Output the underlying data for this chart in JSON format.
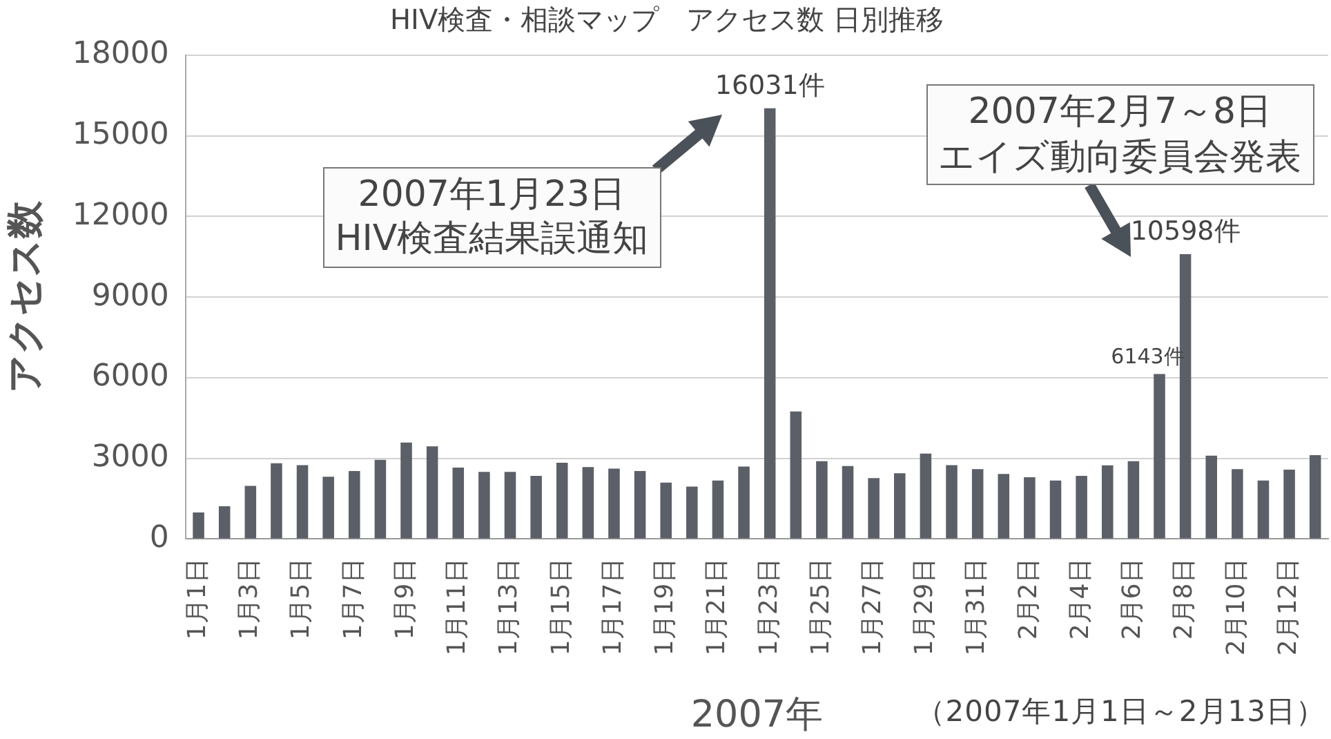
{
  "chart_data": {
    "type": "bar",
    "title": "HIV検査・相談マップ　アクセス数 日別推移",
    "ylabel": "アクセス数",
    "xlabel": "2007年",
    "categories": [
      "1月1日",
      null,
      "1月3日",
      null,
      "1月5日",
      null,
      "1月7日",
      null,
      "1月9日",
      null,
      "1月11日",
      null,
      "1月13日",
      null,
      "1月15日",
      null,
      "1月17日",
      null,
      "1月19日",
      null,
      "1月21日",
      null,
      "1月23日",
      null,
      "1月25日",
      null,
      "1月27日",
      null,
      "1月29日",
      null,
      "1月31日",
      null,
      "2月2日",
      null,
      "2月4日",
      null,
      "2月6日",
      null,
      "2月8日",
      null,
      "2月10日",
      null,
      "2月12日",
      null
    ],
    "values": [
      990,
      1220,
      1980,
      2820,
      2750,
      2320,
      2530,
      2950,
      3590,
      3450,
      2660,
      2500,
      2500,
      2350,
      2840,
      2680,
      2620,
      2530,
      2100,
      1950,
      2180,
      2700,
      16031,
      4750,
      2900,
      2720,
      2270,
      2450,
      3180,
      2750,
      2600,
      2420,
      2300,
      2180,
      2350,
      2740,
      2900,
      6143,
      10598,
      3100,
      2600,
      2180,
      2580,
      3120
    ],
    "value_labels": [
      null,
      null,
      null,
      null,
      null,
      null,
      null,
      null,
      null,
      null,
      null,
      null,
      null,
      null,
      null,
      null,
      null,
      null,
      null,
      null,
      null,
      null,
      "16031件",
      null,
      null,
      null,
      null,
      null,
      null,
      null,
      null,
      null,
      null,
      null,
      null,
      null,
      null,
      "6143件",
      "10598件",
      null,
      null,
      null,
      null,
      null
    ],
    "color": "#5b6068",
    "ylim": [
      0,
      18000
    ],
    "yticks": [
      0,
      3000,
      6000,
      9000,
      12000,
      15000,
      18000
    ],
    "grid": "y",
    "annotations": [
      "2007年1月23日",
      "HIV検査結果誤通知",
      "2007年2月7～8日",
      "エイズ動向委員会発表",
      "（2007年1月1日～2月13日）"
    ]
  }
}
